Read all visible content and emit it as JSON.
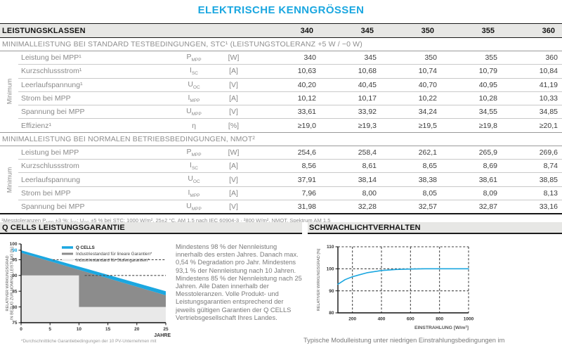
{
  "page": {
    "title": "ELEKTRISCHE KENNGRÖSSEN"
  },
  "colors": {
    "accent": "#1ba7e0",
    "header_bg": "#e7e7e5",
    "dark_gray_band": "#8c8c8c",
    "light_gray_band": "#e9e9e9",
    "label_gray": "#8a8a8a",
    "value_dark": "#3c3c3c"
  },
  "table": {
    "power_classes_label": "LEISTUNGSKLASSEN",
    "power_classes": [
      "340",
      "345",
      "350",
      "355",
      "360"
    ],
    "sections": [
      {
        "header": "MINIMALLEISTUNG BEI STANDARD TESTBEDINGUNGEN, STC¹ (LEISTUNGSTOLERANZ +5 W / −0 W)",
        "side_label": "Minimum",
        "rows": [
          {
            "label": "Leistung bei MPP¹",
            "symbol": "P",
            "sub": "MPP",
            "unit": "[W]",
            "values": [
              "340",
              "345",
              "350",
              "355",
              "360"
            ]
          },
          {
            "label": "Kurzschlussstrom¹",
            "symbol": "I",
            "sub": "SC",
            "unit": "[A]",
            "values": [
              "10,63",
              "10,68",
              "10,74",
              "10,79",
              "10,84"
            ]
          },
          {
            "label": "Leerlaufspannung¹",
            "symbol": "U",
            "sub": "OC",
            "unit": "[V]",
            "values": [
              "40,20",
              "40,45",
              "40,70",
              "40,95",
              "41,19"
            ]
          },
          {
            "label": "Strom bei MPP",
            "symbol": "I",
            "sub": "MPP",
            "unit": "[A]",
            "values": [
              "10,12",
              "10,17",
              "10,22",
              "10,28",
              "10,33"
            ]
          },
          {
            "label": "Spannung bei MPP",
            "symbol": "U",
            "sub": "MPP",
            "unit": "[V]",
            "values": [
              "33,61",
              "33,92",
              "34,24",
              "34,55",
              "34,85"
            ]
          },
          {
            "label": "Effizienz¹",
            "symbol": "η",
            "sub": "",
            "unit": "[%]",
            "values": [
              "≥19,0",
              "≥19,3",
              "≥19,5",
              "≥19,8",
              "≥20,1"
            ]
          }
        ]
      },
      {
        "header": "MINIMALLEISTUNG BEI NORMALEN BETRIEBSBEDINGUNGEN, NMOT²",
        "side_label": "Minimum",
        "rows": [
          {
            "label": "Leistung bei MPP",
            "symbol": "P",
            "sub": "MPP",
            "unit": "[W]",
            "values": [
              "254,6",
              "258,4",
              "262,1",
              "265,9",
              "269,6"
            ]
          },
          {
            "label": "Kurzschlussstrom",
            "symbol": "I",
            "sub": "SC",
            "unit": "[A]",
            "values": [
              "8,56",
              "8,61",
              "8,65",
              "8,69",
              "8,74"
            ]
          },
          {
            "label": "Leerlaufspannung",
            "symbol": "U",
            "sub": "OC",
            "unit": "[V]",
            "values": [
              "37,91",
              "38,14",
              "38,38",
              "38,61",
              "38,85"
            ]
          },
          {
            "label": "Strom bei MPP",
            "symbol": "I",
            "sub": "MPP",
            "unit": "[A]",
            "values": [
              "7,96",
              "8,00",
              "8,05",
              "8,09",
              "8,13"
            ]
          },
          {
            "label": "Spannung bei MPP",
            "symbol": "U",
            "sub": "MPP",
            "unit": "[V]",
            "values": [
              "31,98",
              "32,28",
              "32,57",
              "32,87",
              "33,16"
            ]
          }
        ]
      }
    ],
    "footnote_parts": [
      {
        "t": "¹Messtoleranzen P"
      },
      {
        "s": "MPP"
      },
      {
        "t": " ±3 %; I"
      },
      {
        "s": "SC"
      },
      {
        "t": "; U"
      },
      {
        "s": "OC"
      },
      {
        "t": " ±5 % bei STC: 1000 W/m², 25±2 °C, AM 1,5 nach IEC 60904-3 · ²800 W/m², NMOT, Spektrum AM 1,5"
      }
    ]
  },
  "warranty": {
    "section_title": "Q CELLS LEISTUNGSGARANTIE",
    "footnote": "*Durchschnittliche Garantiebedingungen der 10 PV-Unternehmen mit",
    "description": "Mindestens 98 % der Nennleistung innerhalb des ersten Jahres. Danach max. 0,54 % Degradation pro Jahr. Mindestens 93,1 % der Nennleistung nach 10 Jahren. Mindestens 85 % der Nennleistung nach 25 Jahren. Alle Daten innerhalb der Messtoleranzen. Volle Produkt- und Leistungsgarantien entsprechend der jeweils gültigen Garantien der Q CELLS Vertriebsgesellschaft Ihres Landes."
  },
  "lowlight": {
    "section_title": "SCHWACHLICHTVERHALTEN",
    "caption": "Typische Modulleistung unter niedrigen Einstrahlungsbedingungen im"
  },
  "chart_data": [
    {
      "id": "leistungsgarantie",
      "type": "area",
      "title": "Q CELLS LEISTUNGSGARANTIE",
      "xlabel": "JAHRE",
      "ylabel": "RELATIVER WIRKUNGSGRAD IN BEZUG ZUR NOMINALLEISTUNG [%]",
      "ylabel_lines": [
        "RELATIVER WIRKUNGSGRAD",
        "IN BEZUG ZUR NOMINALLEISTUNG [%]"
      ],
      "xlim": [
        0,
        25
      ],
      "ylim": [
        75,
        100
      ],
      "xticks": [
        0,
        5,
        10,
        15,
        20,
        25
      ],
      "yticks": [
        100,
        98,
        95,
        90,
        85,
        80,
        75
      ],
      "ytick_highlight": 98,
      "legend_position": "top",
      "dashed_guides": [
        {
          "y": 95,
          "x1": 5.5,
          "x2": 25
        },
        {
          "y": 90,
          "x1": 11,
          "x2": 25
        }
      ],
      "series": [
        {
          "name": "Q CELLS",
          "color": "#1ba7e0",
          "line": [
            [
              0,
              98
            ],
            [
              25,
              85
            ]
          ]
        },
        {
          "name": "Industriestandard für lineare Garantien*",
          "color": "#8c8c8c",
          "line": [
            [
              0,
              97.2
            ],
            [
              25,
              83.7
            ]
          ]
        },
        {
          "name": "Industriestandard für Stufengarantien*",
          "color": "#e9e9e9",
          "line": [
            [
              0,
              90
            ],
            [
              10,
              90
            ],
            [
              10,
              80
            ],
            [
              25,
              80
            ]
          ]
        }
      ]
    },
    {
      "id": "schwachlichtverhalten",
      "type": "line",
      "title": "SCHWACHLICHTVERHALTEN",
      "xlabel": "EINSTRAHLUNG [W/m²]",
      "ylabel": "RELATIVER WIRKUNGSGRAD [%]",
      "xlim": [
        100,
        1000
      ],
      "ylim": [
        80,
        112
      ],
      "xticks": [
        200,
        400,
        600,
        800,
        1000
      ],
      "yticks": [
        80,
        90,
        100,
        110
      ],
      "grid_x": [
        200,
        400,
        600,
        800,
        1000
      ],
      "grid_y": [
        90,
        100,
        110
      ],
      "line_color": "#1ba7e0",
      "points": [
        [
          100,
          93
        ],
        [
          150,
          95.1
        ],
        [
          200,
          96.4
        ],
        [
          300,
          98.2
        ],
        [
          400,
          99.2
        ],
        [
          500,
          99.7
        ],
        [
          600,
          99.9
        ],
        [
          700,
          100
        ],
        [
          800,
          100
        ],
        [
          900,
          100
        ],
        [
          1000,
          100
        ]
      ]
    }
  ]
}
